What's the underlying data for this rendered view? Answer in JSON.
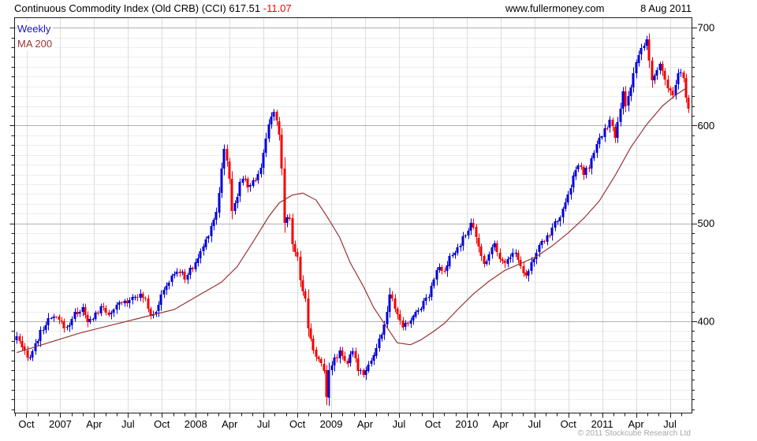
{
  "header": {
    "title_main": "Continuous Commodity Index (Old CRB) (CCI) 617.51",
    "change_label": "-11.07",
    "website": "www.fullermoney.com",
    "date": "8 Aug 2011"
  },
  "legend": {
    "series1": "Weekly",
    "series2": "MA 200"
  },
  "footer": {
    "copyright": "© 2011 Stockcube Research Ltd"
  },
  "colors": {
    "up_candle": "#0000d8",
    "down_candle": "#f40000",
    "ma_line": "#993333",
    "grid_minor": "#ececec",
    "grid_vertical": "#dcdcdc",
    "grid_major": "#b0b0b0",
    "border": "#1a1a1a",
    "axis_text": "#000000"
  },
  "chart_data": {
    "type": "candlestick",
    "title": "Continuous Commodity Index (Old CRB) (CCI)",
    "timeframe": "Weekly",
    "overlay": "MA 200",
    "last_close": 617.51,
    "change": -11.07,
    "x_range": [
      "Sep 2006",
      "Aug 2011"
    ],
    "weeks": 257,
    "y_axis": {
      "tick_labels": [
        700,
        600,
        500,
        400
      ],
      "minor_step": 10,
      "visible_range": [
        306,
        710
      ]
    },
    "x_labels": [
      "Oct",
      "2007",
      "Apr",
      "Jul",
      "Oct",
      "2008",
      "Apr",
      "Jul",
      "Oct",
      "2009",
      "Apr",
      "Jul",
      "Oct",
      "2010",
      "Apr",
      "Jul",
      "Oct",
      "2011",
      "Apr",
      "Jul"
    ],
    "close_anchors": [
      [
        0,
        385
      ],
      [
        2,
        372
      ],
      [
        4,
        362
      ],
      [
        6,
        370
      ],
      [
        9,
        388
      ],
      [
        11,
        398
      ],
      [
        14,
        404
      ],
      [
        17,
        398
      ],
      [
        19,
        393
      ],
      [
        22,
        408
      ],
      [
        25,
        413
      ],
      [
        27,
        398
      ],
      [
        30,
        408
      ],
      [
        33,
        414
      ],
      [
        36,
        406
      ],
      [
        39,
        418
      ],
      [
        42,
        421
      ],
      [
        45,
        428
      ],
      [
        49,
        423
      ],
      [
        51,
        407
      ],
      [
        53,
        412
      ],
      [
        57,
        437
      ],
      [
        61,
        452
      ],
      [
        64,
        445
      ],
      [
        67,
        455
      ],
      [
        70,
        470
      ],
      [
        73,
        490
      ],
      [
        76,
        512
      ],
      [
        78,
        555
      ],
      [
        79,
        578
      ],
      [
        81,
        545
      ],
      [
        82,
        515
      ],
      [
        84,
        530
      ],
      [
        86,
        548
      ],
      [
        88,
        538
      ],
      [
        91,
        545
      ],
      [
        93,
        558
      ],
      [
        95,
        585
      ],
      [
        97,
        612
      ],
      [
        98,
        615
      ],
      [
        100,
        588
      ],
      [
        101,
        555
      ],
      [
        102,
        502
      ],
      [
        104,
        508
      ],
      [
        105,
        478
      ],
      [
        107,
        467
      ],
      [
        108,
        440
      ],
      [
        110,
        426
      ],
      [
        111,
        392
      ],
      [
        113,
        372
      ],
      [
        115,
        360
      ],
      [
        117,
        350
      ],
      [
        118,
        325
      ],
      [
        119,
        352
      ],
      [
        121,
        360
      ],
      [
        123,
        370
      ],
      [
        126,
        358
      ],
      [
        128,
        368
      ],
      [
        130,
        352
      ],
      [
        132,
        348
      ],
      [
        134,
        356
      ],
      [
        136,
        365
      ],
      [
        139,
        388
      ],
      [
        141,
        408
      ],
      [
        142,
        428
      ],
      [
        144,
        412
      ],
      [
        146,
        402
      ],
      [
        147,
        393
      ],
      [
        149,
        398
      ],
      [
        151,
        405
      ],
      [
        153,
        412
      ],
      [
        155,
        420
      ],
      [
        157,
        428
      ],
      [
        159,
        445
      ],
      [
        161,
        455
      ],
      [
        163,
        448
      ],
      [
        165,
        465
      ],
      [
        167,
        470
      ],
      [
        169,
        480
      ],
      [
        171,
        488
      ],
      [
        173,
        503
      ],
      [
        175,
        484
      ],
      [
        178,
        458
      ],
      [
        180,
        470
      ],
      [
        182,
        480
      ],
      [
        184,
        466
      ],
      [
        186,
        458
      ],
      [
        188,
        468
      ],
      [
        190,
        470
      ],
      [
        192,
        456
      ],
      [
        194,
        448
      ],
      [
        196,
        460
      ],
      [
        199,
        475
      ],
      [
        201,
        483
      ],
      [
        203,
        490
      ],
      [
        205,
        500
      ],
      [
        208,
        512
      ],
      [
        210,
        528
      ],
      [
        212,
        548
      ],
      [
        214,
        560
      ],
      [
        216,
        550
      ],
      [
        218,
        558
      ],
      [
        220,
        572
      ],
      [
        222,
        585
      ],
      [
        224,
        595
      ],
      [
        226,
        605
      ],
      [
        227,
        598
      ],
      [
        228,
        586
      ],
      [
        230,
        618
      ],
      [
        231,
        636
      ],
      [
        232,
        622
      ],
      [
        234,
        640
      ],
      [
        236,
        662
      ],
      [
        238,
        678
      ],
      [
        240,
        686
      ],
      [
        242,
        646
      ],
      [
        244,
        655
      ],
      [
        245,
        660
      ],
      [
        247,
        650
      ],
      [
        248,
        636
      ],
      [
        250,
        630
      ],
      [
        252,
        652
      ],
      [
        253,
        655
      ],
      [
        254,
        648
      ],
      [
        255,
        628.58
      ],
      [
        256,
        617.51
      ]
    ],
    "ma_anchors": [
      [
        0,
        368
      ],
      [
        12,
        378
      ],
      [
        24,
        388
      ],
      [
        36,
        396
      ],
      [
        48,
        404
      ],
      [
        60,
        412
      ],
      [
        69,
        426
      ],
      [
        78,
        440
      ],
      [
        84,
        456
      ],
      [
        90,
        481
      ],
      [
        96,
        507
      ],
      [
        100,
        521
      ],
      [
        105,
        529
      ],
      [
        109,
        531
      ],
      [
        114,
        524
      ],
      [
        118,
        508
      ],
      [
        123,
        486
      ],
      [
        127,
        460
      ],
      [
        132,
        436
      ],
      [
        136,
        414
      ],
      [
        141,
        394
      ],
      [
        145,
        378
      ],
      [
        150,
        376
      ],
      [
        154,
        381
      ],
      [
        159,
        390
      ],
      [
        163,
        398
      ],
      [
        168,
        412
      ],
      [
        174,
        428
      ],
      [
        180,
        441
      ],
      [
        186,
        452
      ],
      [
        192,
        459
      ],
      [
        198,
        466
      ],
      [
        204,
        477
      ],
      [
        210,
        490
      ],
      [
        216,
        505
      ],
      [
        222,
        523
      ],
      [
        228,
        549
      ],
      [
        234,
        578
      ],
      [
        240,
        601
      ],
      [
        246,
        620
      ],
      [
        251,
        631
      ],
      [
        255.5,
        639
      ]
    ]
  },
  "render": {
    "seed": 987654321,
    "noise_amp": 3.2,
    "wick_base": 1.1,
    "wick_rand": 3.1,
    "wick_trend_factor": 0.16
  }
}
